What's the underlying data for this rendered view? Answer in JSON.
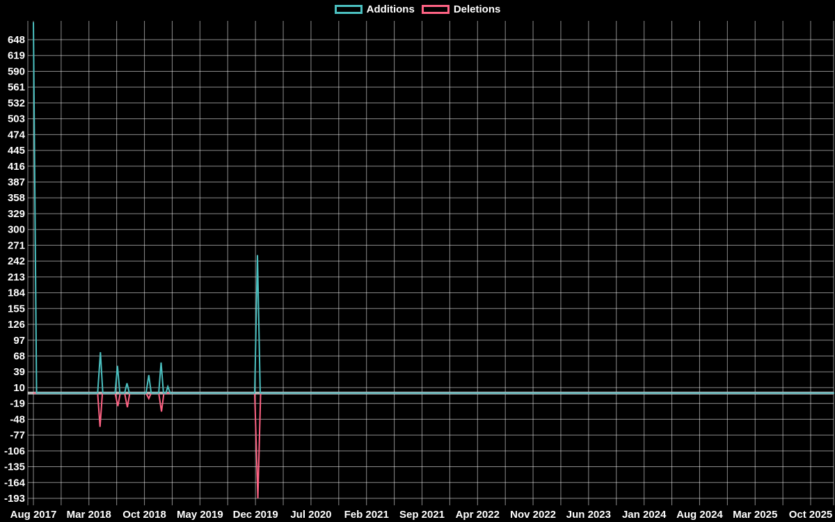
{
  "page": {
    "background": "#000000",
    "text_color": "#ffffff",
    "grid_color": "rgba(255,255,255,0.55)"
  },
  "chart_data": {
    "type": "line",
    "title": "",
    "legend_position": "top",
    "grid": true,
    "x_axis": {
      "unit": "months since Aug 2017",
      "tick_labels": [
        "Aug 2017",
        "Mar 2018",
        "Oct 2018",
        "May 2019",
        "Dec 2019",
        "Jul 2020",
        "Feb 2021",
        "Sep 2021",
        "Apr 2022",
        "Nov 2022",
        "Jun 2023",
        "Jan 2024",
        "Aug 2024",
        "Mar 2025",
        "Oct 2025"
      ],
      "tick_month_positions": [
        0,
        7,
        14,
        21,
        28,
        35,
        42,
        49,
        56,
        63,
        70,
        77,
        84,
        91,
        98
      ],
      "minor_grid_month_step": 3.5,
      "range_months": [
        0,
        101
      ]
    },
    "y_axis": {
      "ticks": [
        648,
        619,
        590,
        561,
        532,
        503,
        474,
        445,
        416,
        387,
        358,
        329,
        300,
        271,
        242,
        213,
        184,
        155,
        126,
        97,
        68,
        39,
        10,
        -19,
        -48,
        -77,
        -106,
        -135,
        -164,
        -193
      ],
      "tick_step": 29,
      "range": [
        -204,
        683
      ]
    },
    "baseline": {
      "value": 0,
      "color": "#e6e6e6"
    },
    "series": [
      {
        "name": "Additions",
        "color": "#4bc0c0",
        "points": [
          [
            0,
            680
          ],
          [
            0.4,
            0
          ],
          [
            8.1,
            0
          ],
          [
            8.45,
            75
          ],
          [
            8.75,
            0
          ],
          [
            10.3,
            0
          ],
          [
            10.6,
            50
          ],
          [
            10.9,
            0
          ],
          [
            11.5,
            0
          ],
          [
            11.8,
            18
          ],
          [
            12.1,
            0
          ],
          [
            14.2,
            0
          ],
          [
            14.55,
            33
          ],
          [
            14.85,
            0
          ],
          [
            15.8,
            0
          ],
          [
            16.1,
            56
          ],
          [
            16.4,
            0
          ],
          [
            16.7,
            0
          ],
          [
            16.95,
            12
          ],
          [
            17.25,
            0
          ],
          [
            27.9,
            0
          ],
          [
            28.25,
            253
          ],
          [
            28.6,
            0
          ],
          [
            101,
            0
          ]
        ]
      },
      {
        "name": "Deletions",
        "color": "#ff6384",
        "points": [
          [
            0,
            0
          ],
          [
            8.1,
            0
          ],
          [
            8.4,
            -62
          ],
          [
            8.7,
            0
          ],
          [
            10.3,
            0
          ],
          [
            10.65,
            -24
          ],
          [
            10.95,
            0
          ],
          [
            11.5,
            0
          ],
          [
            11.85,
            -26
          ],
          [
            12.15,
            0
          ],
          [
            14.2,
            0
          ],
          [
            14.55,
            -10
          ],
          [
            14.85,
            0
          ],
          [
            15.8,
            0
          ],
          [
            16.15,
            -34
          ],
          [
            16.45,
            0
          ],
          [
            27.9,
            0
          ],
          [
            28.3,
            -193
          ],
          [
            28.65,
            0
          ],
          [
            101,
            0
          ]
        ]
      }
    ]
  }
}
